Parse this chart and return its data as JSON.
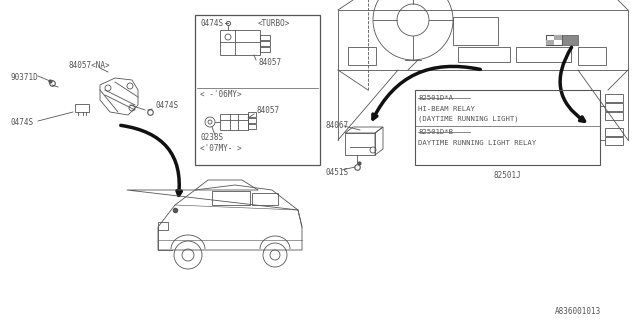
{
  "bg_color": "#ffffff",
  "line_color": "#555555",
  "text_color": "#555555",
  "diagram_id": "A836001013",
  "labels": {
    "90371D": "90371D",
    "84057NA": "84057<NA>",
    "0474S_a": "0474S",
    "0474S_b": "0474S",
    "turbo": "<TURBO>",
    "84057_1": "84057",
    "06MY": "< -'06MY>",
    "0238S": "0238S",
    "84057_2": "84057",
    "07MY": "<'07MY- >",
    "84067": "84067",
    "0451S": "0451S",
    "82501DA": "82501D*A",
    "hibeam": "HI-BEAM RELAY",
    "dtrl1": "(DAYTIME RUNNING LIGHT)",
    "82501DB": "82501D*B",
    "dtrl2": "DAYTIME RUNNING LIGHT RELAY",
    "82501J": "82501J"
  }
}
